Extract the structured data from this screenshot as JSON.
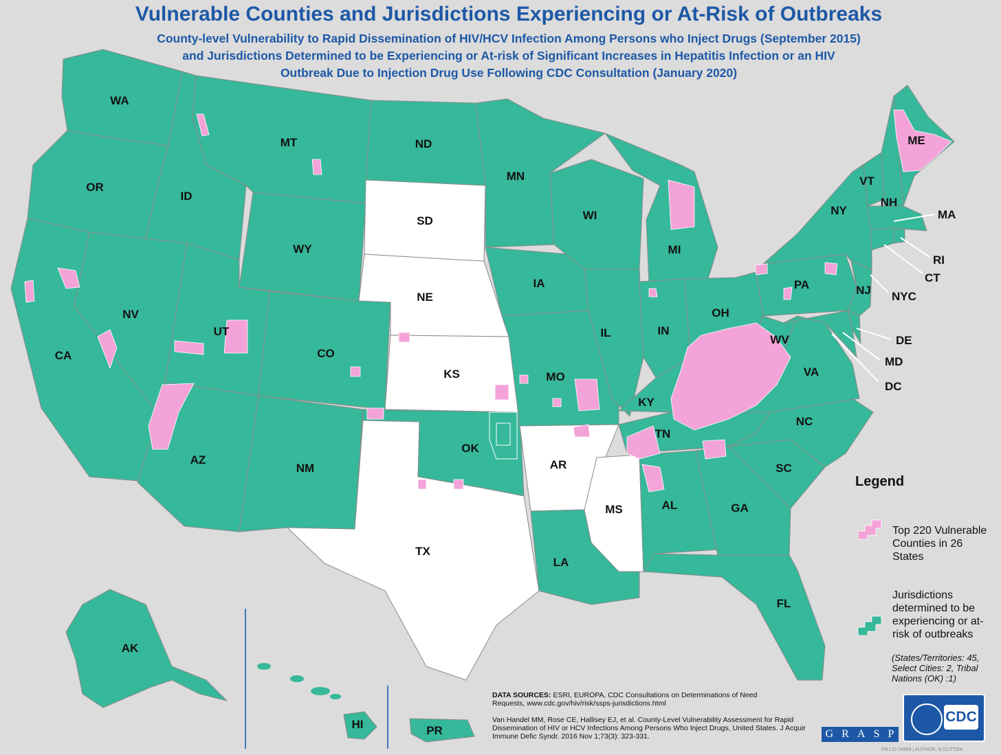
{
  "title": "Vulnerable Counties and Jurisdictions Experiencing or At-Risk of Outbreaks",
  "subtitle": [
    "County-level Vulnerability to Rapid Dissemination of HIV/HCV Infection Among Persons who Inject Drugs (September 2015)",
    "and Jurisdictions Determined to be Experiencing or At-risk of Significant Increases in Hepatitis Infection or an HIV",
    "Outbreak Due to Injection Drug Use Following CDC Consultation (January 2020)"
  ],
  "colors": {
    "jurisdiction": "#36b89a",
    "vulnerable_county": "#f4a3d8",
    "not_determined": "#ffffff",
    "border": "#8a8a8a",
    "title": "#1d58a6",
    "background": "#dcdcdc"
  },
  "states": {
    "jurisdiction": [
      "WA",
      "OR",
      "CA",
      "ID",
      "NV",
      "MT",
      "WY",
      "UT",
      "CO",
      "AZ",
      "NM",
      "ND",
      "MN",
      "IA",
      "WI",
      "MI",
      "IL",
      "IN",
      "OH",
      "MO",
      "OK",
      "KY",
      "TN",
      "AL",
      "LA",
      "GA",
      "FL",
      "SC",
      "NC",
      "VA",
      "WV",
      "PA",
      "NY",
      "VT",
      "NH",
      "ME",
      "MA",
      "RI",
      "CT",
      "NJ",
      "DE",
      "MD",
      "DC",
      "AK",
      "HI",
      "PR"
    ],
    "not_determined": [
      "SD",
      "NE",
      "KS",
      "TX",
      "AR",
      "MS"
    ]
  },
  "state_labels": {
    "WA": "WA",
    "OR": "OR",
    "CA": "CA",
    "ID": "ID",
    "NV": "NV",
    "MT": "MT",
    "WY": "WY",
    "UT": "UT",
    "CO": "CO",
    "AZ": "AZ",
    "NM": "NM",
    "ND": "ND",
    "SD": "SD",
    "NE": "NE",
    "KS": "KS",
    "OK": "OK",
    "TX": "TX",
    "MN": "MN",
    "IA": "IA",
    "MO": "MO",
    "AR": "AR",
    "LA": "LA",
    "WI": "WI",
    "IL": "IL",
    "MI": "MI",
    "IN": "IN",
    "OH": "OH",
    "KY": "KY",
    "TN": "TN",
    "MS": "MS",
    "AL": "AL",
    "GA": "GA",
    "FL": "FL",
    "SC": "SC",
    "NC": "NC",
    "VA": "VA",
    "WV": "WV",
    "PA": "PA",
    "NY": "NY",
    "VT": "VT",
    "NH": "NH",
    "ME": "ME",
    "NJ": "NJ",
    "AK": "AK",
    "HI": "HI",
    "PR": "PR"
  },
  "callouts": {
    "MA": "MA",
    "RI": "RI",
    "CT": "CT",
    "NYC": "NYC",
    "DE": "DE",
    "MD": "MD",
    "DC": "DC"
  },
  "legend": {
    "title": "Legend",
    "items": [
      {
        "label": "Top 220 Vulnerable Counties in 26 States",
        "color": "#f4a3d8"
      },
      {
        "label": "Jurisdictions determined to be experiencing or at-risk of outbreaks",
        "color": "#36b89a"
      }
    ],
    "note": "(States/Territories: 45, Select Cities: 2, Tribal Nations (OK) :1)"
  },
  "sources": {
    "label": "DATA SOURCES:",
    "text": "ESRI, EUROPA, CDC Consultations on Determinations of Need Requests, www.cdc.gov/hiv/risk/ssps-jurisdictions.html"
  },
  "citation": "Van Handel MM, Rose CE, Hallisey EJ, et al. County-Level Vulnerability Assessment for Rapid Dissemination of HIV or HCV Infections Among Persons Who Inject Drugs, United States. J Acquir Immune Defic Syndr. 2016 Nov 1;73(3): 323-331.",
  "logos": {
    "grasp": [
      "G",
      "R",
      "A",
      "S",
      "P"
    ],
    "cdc": "CDC"
  },
  "footer": "PRJ ID 04989 | AUTHOR: N DUTTON"
}
